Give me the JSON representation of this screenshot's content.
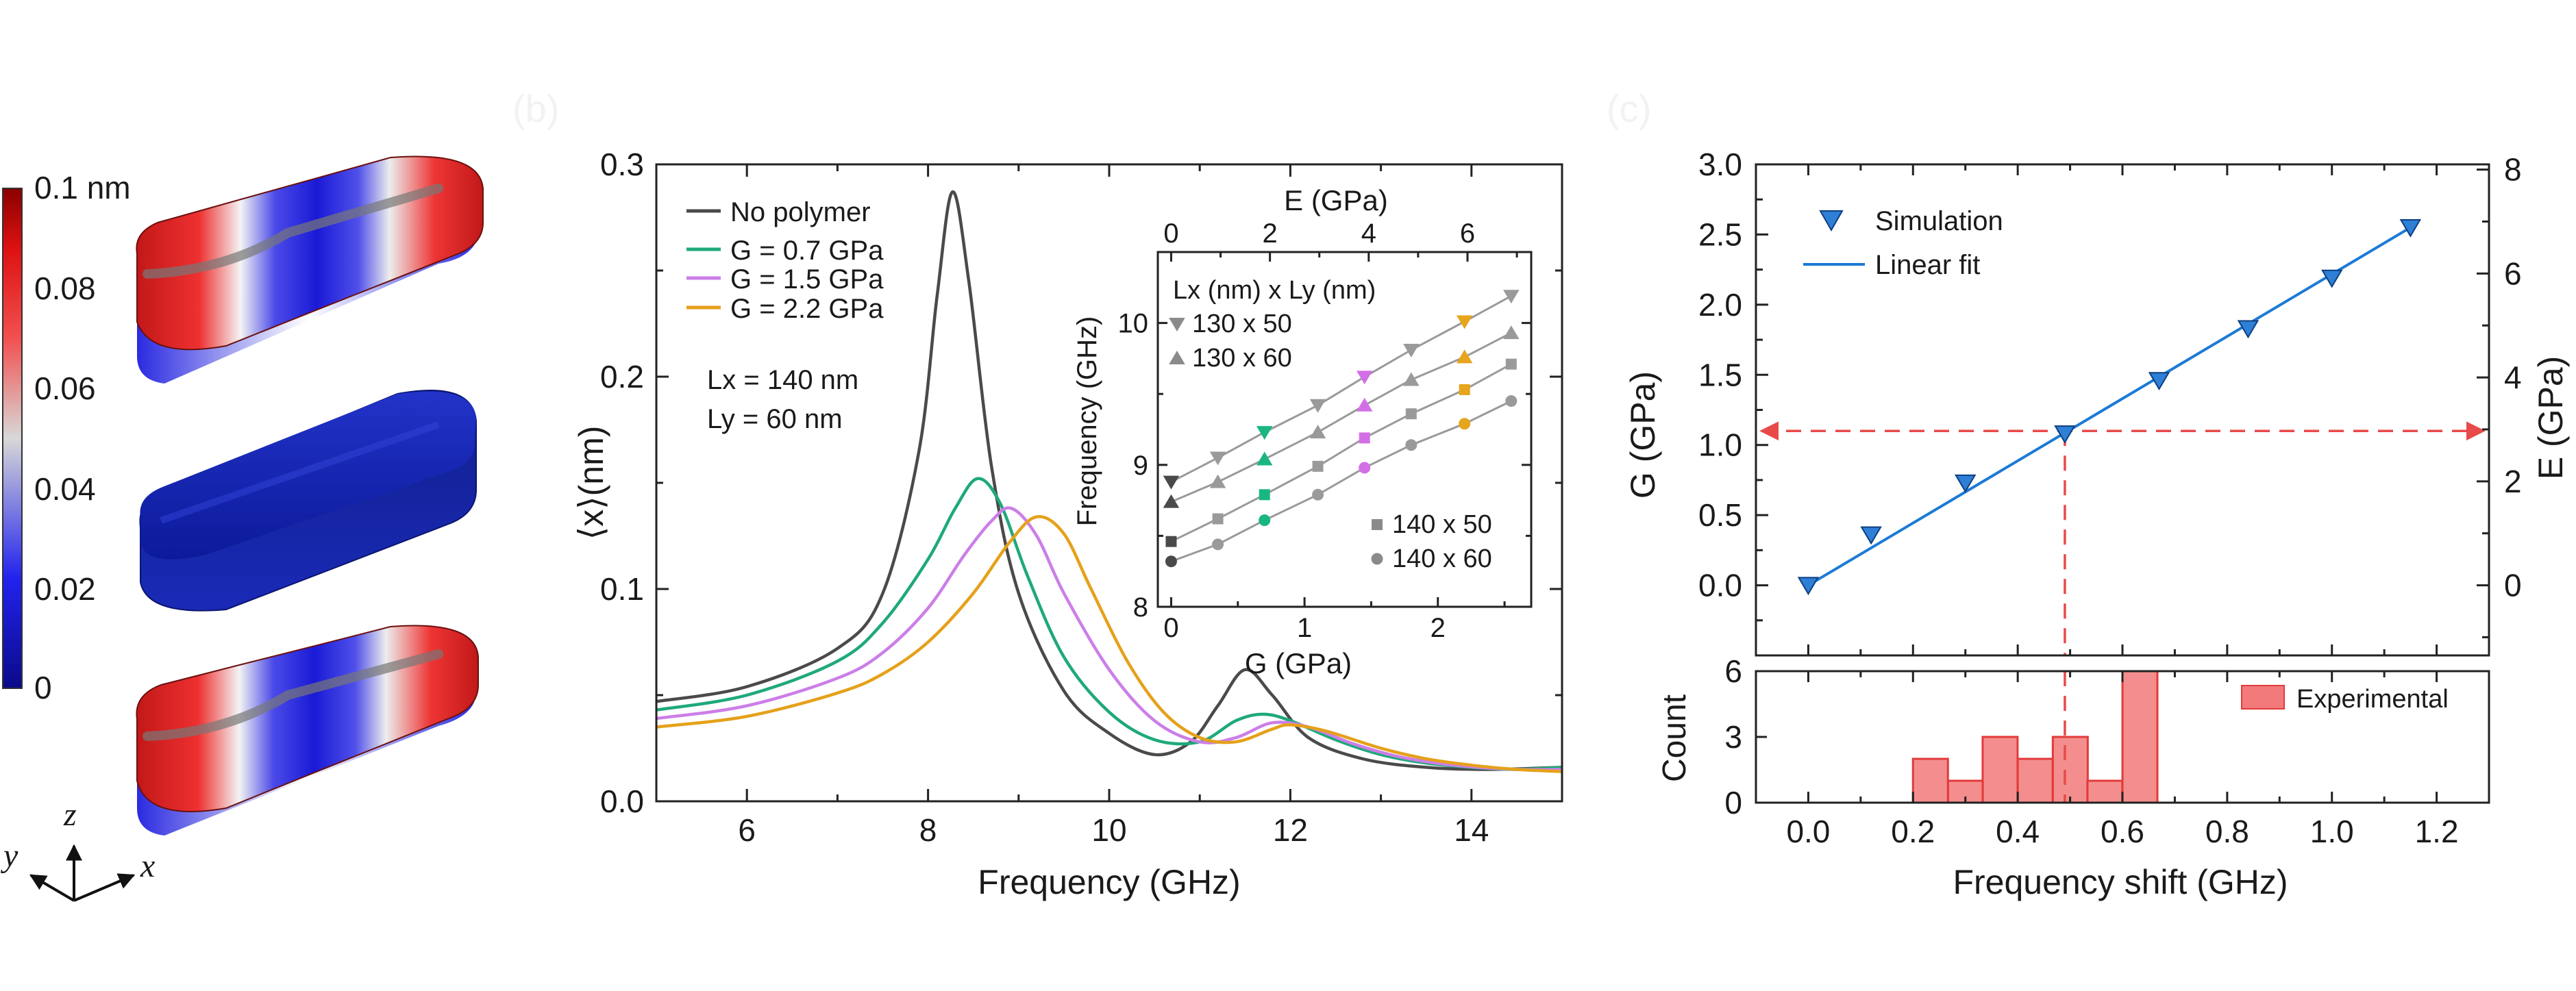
{
  "panel_a": {
    "colorbar": {
      "labels": [
        "0.1 nm",
        "0.08",
        "0.06",
        "0.04",
        "0.02",
        "0"
      ]
    },
    "axes_triad": {
      "x": "x",
      "y": "y",
      "z": "z"
    },
    "shapes": [
      {
        "name": "mode-shape-top",
        "pattern": "red-blue-red"
      },
      {
        "name": "mode-shape-middle",
        "pattern": "uniform-blue"
      },
      {
        "name": "mode-shape-bottom",
        "pattern": "red-blue-red"
      }
    ]
  },
  "panel_labels": {
    "b": "(b)",
    "c": "(c)"
  },
  "chart_data": [
    {
      "id": "main_b",
      "type": "line",
      "title": "",
      "xlabel": "Frequency (GHz)",
      "ylabel": "⟨x⟩(nm)",
      "xlim": [
        5,
        15
      ],
      "ylim": [
        0,
        0.3
      ],
      "xticks": [
        "6",
        "8",
        "10",
        "12",
        "14"
      ],
      "yticks": [
        "0.0",
        "0.1",
        "0.2",
        "0.3"
      ],
      "legend_position": "top-left",
      "annotation": [
        "Lx = 140 nm",
        "Ly = 60 nm"
      ],
      "series": [
        {
          "name": "No polymer",
          "color": "#4a4a4a",
          "x": [
            5,
            6,
            7,
            7.5,
            7.9,
            8.1,
            8.27,
            8.45,
            8.7,
            9.0,
            9.5,
            10.0,
            10.5,
            10.9,
            11.2,
            11.5,
            11.8,
            12.2,
            12.8,
            13.5,
            14.2,
            15
          ],
          "y": [
            0.047,
            0.054,
            0.072,
            0.098,
            0.165,
            0.238,
            0.287,
            0.245,
            0.158,
            0.098,
            0.052,
            0.032,
            0.022,
            0.028,
            0.045,
            0.062,
            0.05,
            0.03,
            0.02,
            0.016,
            0.015,
            0.016
          ]
        },
        {
          "name": "G = 0.7 GPa",
          "color": "#1fa97a",
          "x": [
            5,
            6,
            7,
            7.5,
            8.0,
            8.3,
            8.55,
            8.8,
            9.1,
            9.5,
            10.0,
            10.5,
            11.0,
            11.4,
            11.7,
            12.0,
            12.5,
            13.0,
            13.5,
            14.0,
            14.5,
            15
          ],
          "y": [
            0.043,
            0.05,
            0.066,
            0.084,
            0.114,
            0.138,
            0.152,
            0.14,
            0.106,
            0.068,
            0.042,
            0.029,
            0.028,
            0.038,
            0.041,
            0.038,
            0.029,
            0.022,
            0.018,
            0.016,
            0.015,
            0.016
          ]
        },
        {
          "name": "G = 1.5 GPa",
          "color": "#cc7ee8",
          "x": [
            5,
            6,
            7,
            7.5,
            8.0,
            8.4,
            8.7,
            8.92,
            9.2,
            9.5,
            10.0,
            10.5,
            11.0,
            11.4,
            11.8,
            12.2,
            12.7,
            13.2,
            13.8,
            14.5,
            15
          ],
          "y": [
            0.039,
            0.045,
            0.058,
            0.07,
            0.091,
            0.116,
            0.132,
            0.138,
            0.125,
            0.098,
            0.062,
            0.038,
            0.028,
            0.03,
            0.037,
            0.035,
            0.027,
            0.021,
            0.017,
            0.015,
            0.015
          ]
        },
        {
          "name": "G = 2.2 GPa",
          "color": "#e5a11a",
          "x": [
            5,
            6,
            7,
            7.5,
            8.0,
            8.5,
            8.9,
            9.2,
            9.5,
            9.8,
            10.2,
            10.6,
            11.0,
            11.4,
            11.8,
            12.0,
            12.4,
            13.0,
            13.5,
            14.0,
            14.5,
            15
          ],
          "y": [
            0.035,
            0.04,
            0.051,
            0.06,
            0.075,
            0.098,
            0.122,
            0.134,
            0.126,
            0.1,
            0.066,
            0.042,
            0.03,
            0.028,
            0.034,
            0.036,
            0.033,
            0.025,
            0.02,
            0.017,
            0.015,
            0.014
          ]
        }
      ]
    },
    {
      "id": "inset_b",
      "type": "scatter",
      "xlabel": "G (GPa)",
      "x2label": "E (GPa)",
      "ylabel": "Frequency (GHz)",
      "xlim": [
        -0.1,
        2.7
      ],
      "ylim": [
        8,
        10.5
      ],
      "x2lim": [
        -0.27,
        7.29
      ],
      "xticks": [
        "0",
        "1",
        "2"
      ],
      "x2ticks": [
        "0",
        "2",
        "4",
        "6"
      ],
      "yticks": [
        "8",
        "9",
        "10"
      ],
      "legend_title": "Lx (nm) x Ly (nm)",
      "highlight_colors": [
        "#4a4a4a",
        "#19b77f",
        "#d36fe6",
        "#e6a51c"
      ],
      "x": [
        0,
        0.35,
        0.7,
        1.1,
        1.45,
        1.8,
        2.2,
        2.55
      ],
      "series": [
        {
          "name": "130 x 50",
          "marker": "triangle-down",
          "y": [
            8.88,
            9.05,
            9.23,
            9.42,
            9.62,
            9.81,
            10.01,
            10.19
          ]
        },
        {
          "name": "130 x 60",
          "marker": "triangle-up",
          "y": [
            8.74,
            8.88,
            9.04,
            9.23,
            9.42,
            9.6,
            9.76,
            9.93
          ]
        },
        {
          "name": "140 x 50",
          "marker": "square",
          "y": [
            8.46,
            8.62,
            8.79,
            8.99,
            9.19,
            9.36,
            9.53,
            9.71
          ]
        },
        {
          "name": "140 x 60",
          "marker": "circle",
          "y": [
            8.32,
            8.44,
            8.61,
            8.79,
            8.98,
            9.14,
            9.29,
            9.45
          ]
        }
      ]
    },
    {
      "id": "main_c",
      "type": "scatter",
      "xlabel": "",
      "ylabel": "G (GPa)",
      "y2label": "E (GPa)",
      "xlim": [
        -0.1,
        1.3
      ],
      "ylim": [
        -0.5,
        3.0
      ],
      "y2lim": [
        -1.35,
        8.1
      ],
      "yticks": [
        "0.0",
        "0.5",
        "1.0",
        "1.5",
        "2.0",
        "2.5",
        "3.0"
      ],
      "y2ticks": [
        "0",
        "2",
        "4",
        "6",
        "8"
      ],
      "legend_position": "top-left",
      "series": [
        {
          "name": "Simulation",
          "color": "#2e7fd6",
          "marker": "triangle-down",
          "x": [
            0,
            0.12,
            0.3,
            0.49,
            0.67,
            0.84,
            1.0,
            1.15
          ],
          "y": [
            0,
            0.36,
            0.73,
            1.08,
            1.46,
            1.83,
            2.19,
            2.55
          ]
        },
        {
          "name": "Linear fit",
          "color": "#1c7ad6",
          "x": [
            0,
            1.15
          ],
          "y": [
            0,
            2.55
          ]
        }
      ],
      "guide_lines": {
        "g_value": 1.1,
        "shift_value": 0.49,
        "color": "#e84a4a"
      }
    },
    {
      "id": "hist_c",
      "type": "bar",
      "xlabel": "Frequency shift (GHz)",
      "ylabel": "Count",
      "xlim": [
        -0.1,
        1.3
      ],
      "ylim": [
        0,
        6
      ],
      "xticks": [
        "0.0",
        "0.2",
        "0.4",
        "0.6",
        "0.8",
        "1.0",
        "1.2"
      ],
      "yticks": [
        "0",
        "3",
        "6"
      ],
      "legend_position": "top-right",
      "series": [
        {
          "name": "Experimental",
          "color": "#f27a7a",
          "edge": "#e23b3b",
          "categories": [
            "0.20-0.27",
            "0.27-0.33",
            "0.33-0.40",
            "0.40-0.47",
            "0.47-0.53",
            "0.53-0.60",
            "0.60-0.67"
          ],
          "bin_left": [
            0.2,
            0.267,
            0.333,
            0.4,
            0.467,
            0.533,
            0.6
          ],
          "bin_width": 0.0667,
          "values": [
            2,
            1,
            3,
            2,
            3,
            1,
            6
          ]
        }
      ]
    }
  ]
}
